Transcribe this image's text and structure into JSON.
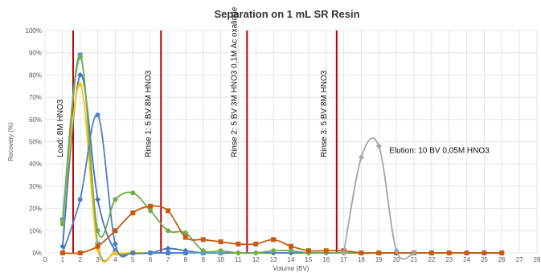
{
  "chart_data": {
    "type": "line",
    "title": "Separation on 1 mL SR Resin",
    "xlabel": "Volume (BV)",
    "ylabel": "Recovery (%)",
    "xlim": [
      0,
      28
    ],
    "ylim": [
      0,
      100
    ],
    "x_ticks": [
      "0",
      "1",
      "2",
      "3",
      "4",
      "5",
      "6",
      "7",
      "8",
      "9",
      "10",
      "11",
      "12",
      "13",
      "14",
      "15",
      "16",
      "17",
      "18",
      "19",
      "20",
      "21",
      "22",
      "23",
      "24",
      "25",
      "26",
      "27",
      "28"
    ],
    "y_ticks": [
      "0%",
      "10%",
      "20%",
      "30%",
      "40%",
      "50%",
      "60%",
      "70%",
      "80%",
      "90%",
      "100%"
    ],
    "grid": true,
    "series": [
      {
        "color": "#4472c4",
        "marker": "diamond",
        "points": [
          [
            1,
            3
          ],
          [
            2,
            80
          ],
          [
            3,
            24
          ],
          [
            4,
            1
          ],
          [
            5,
            0
          ],
          [
            6,
            0
          ],
          [
            7,
            2
          ],
          [
            8,
            1
          ],
          [
            9,
            0
          ],
          [
            10,
            0
          ],
          [
            11,
            0
          ],
          [
            12,
            0
          ],
          [
            13,
            0
          ],
          [
            14,
            0
          ],
          [
            15,
            0
          ],
          [
            16,
            0
          ],
          [
            17,
            0
          ],
          [
            18,
            0
          ],
          [
            19,
            0
          ],
          [
            20,
            0
          ],
          [
            21,
            0
          ],
          [
            22,
            0
          ],
          [
            23,
            0
          ],
          [
            24,
            0
          ],
          [
            25,
            0
          ],
          [
            26,
            0
          ]
        ]
      },
      {
        "color": "#5b9bd5",
        "marker": "square",
        "points": [
          [
            1,
            15
          ],
          [
            2,
            89
          ],
          [
            3,
            4
          ],
          [
            4,
            0
          ],
          [
            5,
            0
          ],
          [
            6,
            0
          ],
          [
            7,
            0
          ],
          [
            8,
            0
          ],
          [
            9,
            0
          ],
          [
            10,
            0
          ]
        ]
      },
      {
        "color": "#ffc000",
        "marker": "triangle",
        "points": [
          [
            1,
            14
          ],
          [
            2,
            76
          ],
          [
            3,
            2
          ],
          [
            4,
            0
          ],
          [
            5,
            0
          ],
          [
            6,
            0
          ]
        ]
      },
      {
        "color": "#4e7ec8",
        "marker": "circle",
        "points": [
          [
            1,
            0
          ],
          [
            2,
            24
          ],
          [
            3,
            62
          ],
          [
            4,
            4
          ],
          [
            5,
            0
          ],
          [
            6,
            0
          ],
          [
            7,
            0
          ],
          [
            8,
            0
          ]
        ]
      },
      {
        "color": "#70ad47",
        "marker": "circle",
        "points": [
          [
            1,
            13
          ],
          [
            2,
            88
          ],
          [
            3,
            10
          ],
          [
            4,
            24
          ],
          [
            5,
            27
          ],
          [
            6,
            19
          ],
          [
            7,
            10
          ],
          [
            8,
            9
          ],
          [
            9,
            1
          ],
          [
            10,
            1
          ],
          [
            11,
            0
          ],
          [
            12,
            0
          ],
          [
            13,
            1
          ],
          [
            14,
            1
          ],
          [
            15,
            0
          ],
          [
            16,
            0
          ],
          [
            17,
            0
          ],
          [
            18,
            0
          ],
          [
            19,
            0
          ],
          [
            20,
            0
          ],
          [
            21,
            0
          ],
          [
            22,
            0
          ],
          [
            23,
            0
          ],
          [
            24,
            0
          ],
          [
            25,
            0
          ],
          [
            26,
            0
          ]
        ]
      },
      {
        "color": "#c55a11",
        "marker": "square",
        "points": [
          [
            1,
            0
          ],
          [
            2,
            0
          ],
          [
            3,
            3
          ],
          [
            4,
            10
          ],
          [
            5,
            18
          ],
          [
            6,
            21
          ],
          [
            7,
            19
          ],
          [
            8,
            7
          ],
          [
            9,
            6
          ],
          [
            10,
            5
          ],
          [
            11,
            4
          ],
          [
            12,
            4
          ],
          [
            13,
            6
          ],
          [
            14,
            3
          ],
          [
            15,
            1
          ],
          [
            16,
            1
          ],
          [
            17,
            1
          ],
          [
            18,
            0
          ],
          [
            19,
            0
          ],
          [
            20,
            0
          ],
          [
            21,
            0
          ],
          [
            22,
            0
          ],
          [
            23,
            0
          ],
          [
            24,
            0
          ],
          [
            25,
            0
          ],
          [
            26,
            0
          ]
        ]
      },
      {
        "color": "#a5a5a5",
        "marker": "diamond",
        "points": [
          [
            17,
            0
          ],
          [
            18,
            43
          ],
          [
            19,
            48
          ],
          [
            20,
            1
          ],
          [
            21,
            0
          ]
        ]
      }
    ],
    "vertical_lines": [
      {
        "x": 1.6,
        "color": "#c00000",
        "label": "Load: 8M HNO3"
      },
      {
        "x": 6.6,
        "color": "#c00000",
        "label": "Rinse 1: 5 BV 8M HNO3"
      },
      {
        "x": 11.5,
        "color": "#c00000",
        "label": "Rinse 2: 5 BV 3M HNO3 0,1M  Ac oxalique"
      },
      {
        "x": 16.6,
        "color": "#c00000",
        "label": "Rinse 3: 5 BV 8M HNO3"
      }
    ],
    "annotations": [
      {
        "text": "Elution: 10 BV 0,05M HNO3",
        "x": 19.5,
        "y": 45
      }
    ]
  }
}
